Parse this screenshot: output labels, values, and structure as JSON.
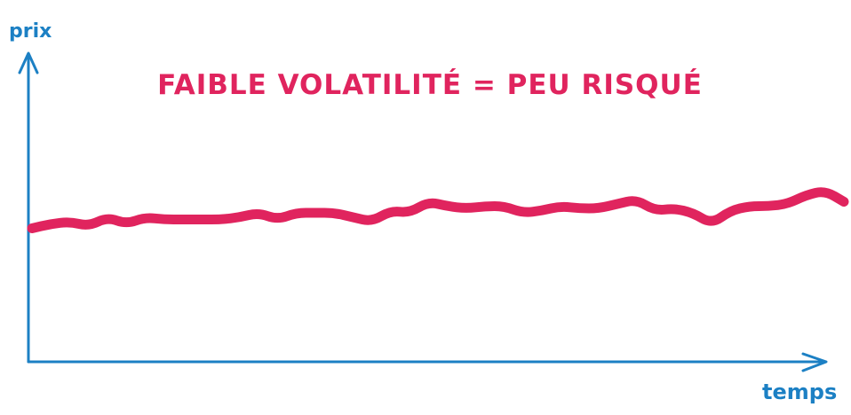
{
  "colors": {
    "axis": "#1c80c4",
    "line": "#e0245e",
    "title": "#e0245e",
    "background": "#ffffff"
  },
  "labels": {
    "title": "FAIBLE VOLATILITÉ = PEU RISQUÉ",
    "y_axis": "prix",
    "x_axis": "temps"
  },
  "chart_data": {
    "type": "line",
    "title": "FAIBLE VOLATILITÉ = PEU RISQUÉ",
    "xlabel": "temps",
    "ylabel": "prix",
    "grid": false,
    "series": [
      {
        "values": [
          0.45,
          0.47,
          0.48,
          0.46,
          0.5,
          0.47,
          0.5,
          0.49,
          0.49,
          0.49,
          0.49,
          0.5,
          0.52,
          0.49,
          0.52,
          0.52,
          0.52,
          0.5,
          0.48,
          0.53,
          0.52,
          0.57,
          0.55,
          0.54,
          0.55,
          0.55,
          0.52,
          0.53,
          0.55,
          0.54,
          0.54,
          0.56,
          0.58,
          0.53,
          0.54,
          0.52,
          0.47,
          0.53,
          0.55,
          0.55,
          0.56,
          0.6,
          0.62,
          0.57
        ]
      }
    ]
  }
}
